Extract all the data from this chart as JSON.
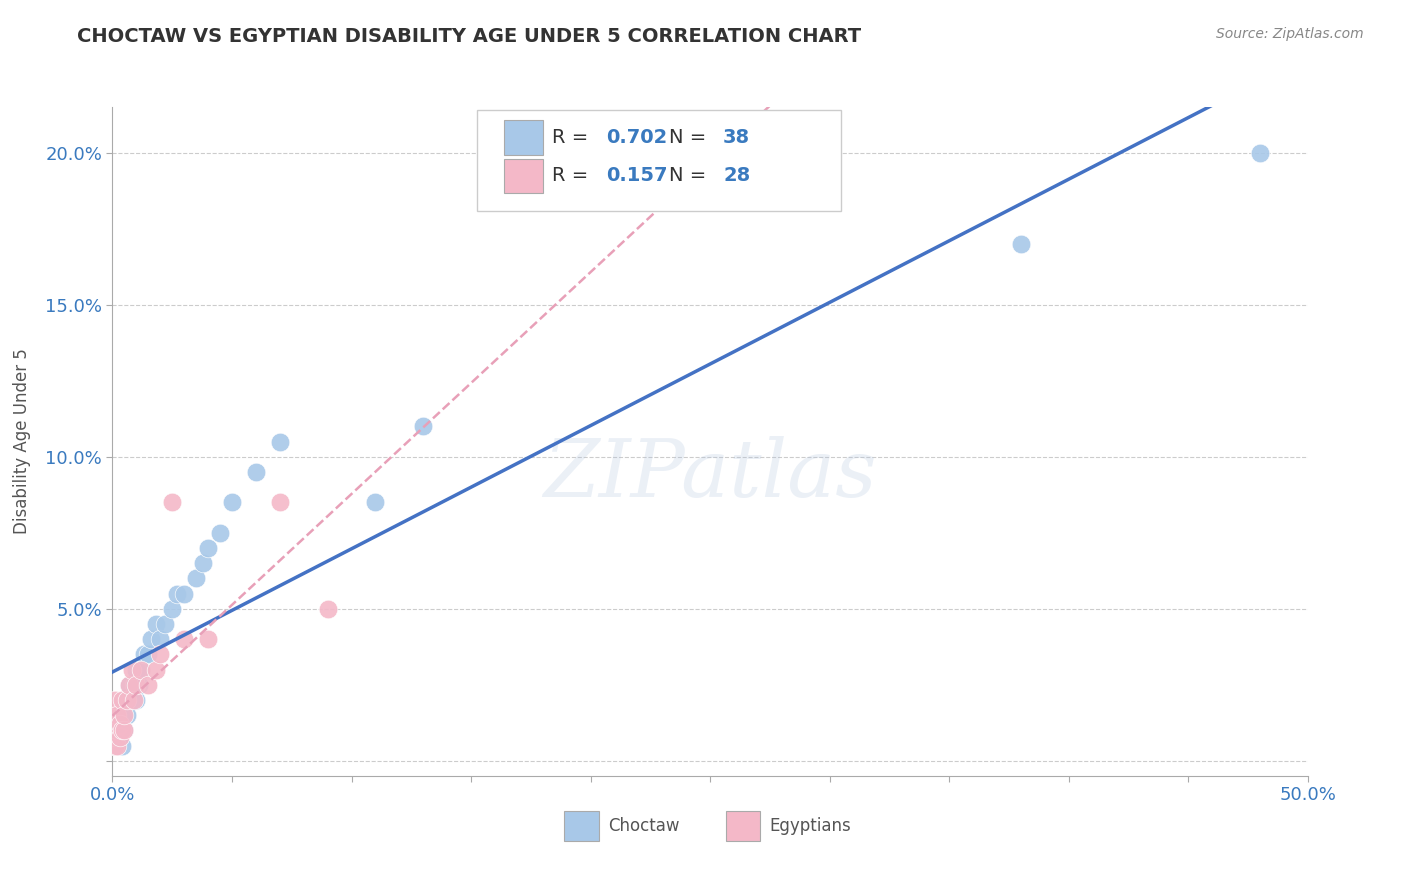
{
  "title": "CHOCTAW VS EGYPTIAN DISABILITY AGE UNDER 5 CORRELATION CHART",
  "source": "Source: ZipAtlas.com",
  "ylabel": "Disability Age Under 5",
  "xlim": [
    0.0,
    0.5
  ],
  "ylim": [
    -0.005,
    0.215
  ],
  "xticks": [
    0.0,
    0.05,
    0.1,
    0.15,
    0.2,
    0.25,
    0.3,
    0.35,
    0.4,
    0.45,
    0.5
  ],
  "xticklabels": [
    "0.0%",
    "",
    "",
    "",
    "",
    "",
    "",
    "",
    "",
    "",
    "50.0%"
  ],
  "yticks": [
    0.0,
    0.05,
    0.1,
    0.15,
    0.2
  ],
  "yticklabels": [
    "",
    "5.0%",
    "10.0%",
    "15.0%",
    "20.0%"
  ],
  "choctaw_R": 0.702,
  "choctaw_N": 38,
  "egyptian_R": 0.157,
  "egyptian_N": 28,
  "choctaw_color": "#a8c8e8",
  "egyptian_color": "#f4b8c8",
  "choctaw_line_color": "#4472c4",
  "egyptian_line_color": "#e8a0b8",
  "grid_color": "#cccccc",
  "watermark": "ZIPatlas",
  "choctaw_x": [
    0.001,
    0.001,
    0.002,
    0.002,
    0.003,
    0.003,
    0.004,
    0.004,
    0.005,
    0.005,
    0.006,
    0.007,
    0.008,
    0.009,
    0.01,
    0.01,
    0.011,
    0.012,
    0.013,
    0.015,
    0.016,
    0.018,
    0.02,
    0.022,
    0.025,
    0.027,
    0.03,
    0.035,
    0.038,
    0.04,
    0.045,
    0.05,
    0.06,
    0.07,
    0.11,
    0.13,
    0.38,
    0.48
  ],
  "choctaw_y": [
    0.005,
    0.01,
    0.005,
    0.01,
    0.008,
    0.012,
    0.005,
    0.015,
    0.01,
    0.02,
    0.015,
    0.025,
    0.02,
    0.025,
    0.02,
    0.03,
    0.025,
    0.03,
    0.035,
    0.035,
    0.04,
    0.045,
    0.04,
    0.045,
    0.05,
    0.055,
    0.055,
    0.06,
    0.065,
    0.07,
    0.075,
    0.085,
    0.095,
    0.105,
    0.085,
    0.11,
    0.17,
    0.2
  ],
  "egyptian_x": [
    0.001,
    0.001,
    0.001,
    0.001,
    0.001,
    0.002,
    0.002,
    0.002,
    0.003,
    0.003,
    0.004,
    0.004,
    0.005,
    0.005,
    0.006,
    0.007,
    0.008,
    0.009,
    0.01,
    0.012,
    0.015,
    0.018,
    0.02,
    0.025,
    0.03,
    0.04,
    0.07,
    0.09
  ],
  "egyptian_y": [
    0.005,
    0.008,
    0.01,
    0.015,
    0.02,
    0.005,
    0.01,
    0.015,
    0.008,
    0.012,
    0.01,
    0.02,
    0.01,
    0.015,
    0.02,
    0.025,
    0.03,
    0.02,
    0.025,
    0.03,
    0.025,
    0.03,
    0.035,
    0.085,
    0.04,
    0.04,
    0.085,
    0.05
  ]
}
